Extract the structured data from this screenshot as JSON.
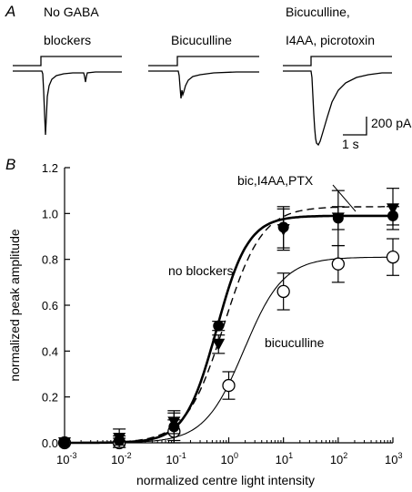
{
  "panel_a": {
    "label": "A",
    "traces": [
      {
        "title_line1": "No GABA",
        "title_line2": "blockers"
      },
      {
        "title_line1": "",
        "title_line2": "Bicuculline"
      },
      {
        "title_line1": "Bicuculline,",
        "title_line2": "I4AA, picrotoxin"
      }
    ],
    "scalebar": {
      "amplitude_label": "200 pA",
      "time_label": "1 s"
    }
  },
  "chart_data": {
    "type": "scatter",
    "panel_label": "B",
    "xlabel": "normalized centre light intensity",
    "ylabel": "normalized peak amplitude",
    "xscale": "log",
    "xlim": [
      0.001,
      1000
    ],
    "ylim": [
      0.0,
      1.2
    ],
    "x_tick_labels": [
      {
        "base": "10",
        "exp": "-3"
      },
      {
        "base": "10",
        "exp": "-2"
      },
      {
        "base": "10",
        "exp": "-1"
      },
      {
        "base": "10",
        "exp": "0"
      },
      {
        "base": "10",
        "exp": "1"
      },
      {
        "base": "10",
        "exp": "2"
      },
      {
        "base": "10",
        "exp": "3"
      }
    ],
    "y_ticks": [
      "0.0",
      "0.2",
      "0.4",
      "0.6",
      "0.8",
      "1.0",
      "1.2"
    ],
    "x": [
      0.001,
      0.01,
      0.1,
      0.65,
      1,
      10,
      100,
      1000
    ],
    "series": [
      {
        "name": "no blockers",
        "marker": "filled-circle",
        "line": "thick-solid",
        "values": [
          0.0,
          0.01,
          0.07,
          0.51,
          null,
          0.94,
          0.98,
          0.99
        ],
        "errors": [
          0.0,
          0.02,
          0.06,
          0.02,
          null,
          0.09,
          0.05,
          0.04
        ]
      },
      {
        "name": "bic,I4AA,PTX",
        "marker": "filled-triangle-down",
        "line": "dashed",
        "values": [
          0.0,
          0.02,
          0.09,
          0.43,
          null,
          0.93,
          0.98,
          1.02
        ],
        "errors": [
          0.0,
          0.04,
          0.05,
          0.04,
          null,
          0.09,
          0.12,
          0.09
        ]
      },
      {
        "name": "bicuculline",
        "marker": "open-circle",
        "line": "thin-solid",
        "values": [
          0.0,
          0.0,
          0.05,
          null,
          0.25,
          0.66,
          0.78,
          0.81
        ],
        "errors": [
          0.0,
          0.02,
          0.05,
          null,
          0.06,
          0.08,
          0.08,
          0.08
        ]
      }
    ],
    "grid": false,
    "legend": "direct labels"
  }
}
